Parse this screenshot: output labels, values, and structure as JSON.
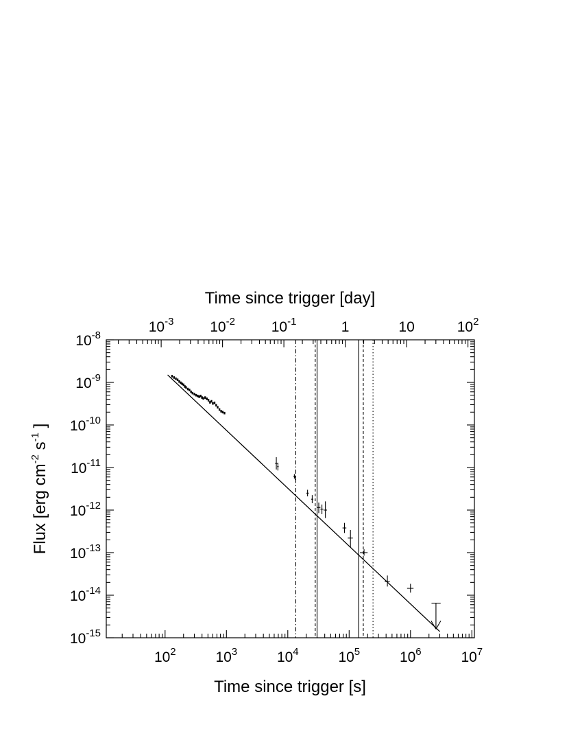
{
  "chart_data": {
    "type": "scatter",
    "title": "",
    "xlabel": "Time since trigger [s]",
    "xlabel_top": "Time since trigger [day]",
    "ylabel": "Flux [erg cm^-2 s^-1 ]",
    "ylabel_parts": {
      "base": "Flux [erg cm",
      "exp1": "-2",
      "mid": " s",
      "exp2": "-1",
      "end": " ]"
    },
    "x_scale": "log",
    "y_scale": "log",
    "xlim": [
      11,
      11000000
    ],
    "ylim": [
      1e-15,
      1e-08
    ],
    "grid": false,
    "legend": "none",
    "x_tick_labels": [
      {
        "value": 100,
        "base": "10",
        "exp": "2"
      },
      {
        "value": 1000,
        "base": "10",
        "exp": "3"
      },
      {
        "value": 10000,
        "base": "10",
        "exp": "4"
      },
      {
        "value": 100000,
        "base": "10",
        "exp": "5"
      },
      {
        "value": 1000000,
        "base": "10",
        "exp": "6"
      },
      {
        "value": 10000000,
        "base": "10",
        "exp": "7"
      }
    ],
    "x_top_tick_labels": [
      {
        "value": 0.001,
        "base": "10",
        "exp": "-3"
      },
      {
        "value": 0.01,
        "base": "10",
        "exp": "-2"
      },
      {
        "value": 0.1,
        "base": "10",
        "exp": "-1"
      },
      {
        "value": 1,
        "base": "1",
        "exp": ""
      },
      {
        "value": 10,
        "base": "10",
        "exp": ""
      },
      {
        "value": 100,
        "base": "10",
        "exp": "2"
      }
    ],
    "y_tick_labels": [
      {
        "value": 1e-08,
        "base": "10",
        "exp": "-8"
      },
      {
        "value": 1e-09,
        "base": "10",
        "exp": "-9"
      },
      {
        "value": 1e-10,
        "base": "10",
        "exp": "-10"
      },
      {
        "value": 1e-11,
        "base": "10",
        "exp": "-11"
      },
      {
        "value": 1e-12,
        "base": "10",
        "exp": "-12"
      },
      {
        "value": 1e-13,
        "base": "10",
        "exp": "-13"
      },
      {
        "value": 1e-14,
        "base": "10",
        "exp": "-14"
      },
      {
        "value": 1e-15,
        "base": "10",
        "exp": "-15"
      }
    ],
    "fit_line": {
      "x": [
        110,
        3000000
      ],
      "y": [
        1.5e-09,
        1.4e-15
      ]
    },
    "vertical_lines": [
      {
        "x": 13500,
        "style": "dashdot"
      },
      {
        "x": 28000,
        "style": "dashed"
      },
      {
        "x": 30000,
        "style": "solid"
      },
      {
        "x": 143000,
        "style": "solid"
      },
      {
        "x": 170000,
        "style": "dashed"
      },
      {
        "x": 245000,
        "style": "dotted"
      }
    ],
    "series": [
      {
        "values": [
          {
            "x": 130,
            "y": 1.4e-09
          },
          {
            "x": 140,
            "y": 1.3e-09
          },
          {
            "x": 150,
            "y": 1.22e-09
          },
          {
            "x": 160,
            "y": 1.15e-09
          },
          {
            "x": 170,
            "y": 1.05e-09
          },
          {
            "x": 180,
            "y": 9.8e-10
          },
          {
            "x": 190,
            "y": 9.2e-10
          },
          {
            "x": 200,
            "y": 8.8e-10
          },
          {
            "x": 210,
            "y": 8e-10
          },
          {
            "x": 220,
            "y": 7.6e-10
          },
          {
            "x": 235,
            "y": 7e-10
          },
          {
            "x": 250,
            "y": 6.6e-10
          },
          {
            "x": 265,
            "y": 6e-10
          },
          {
            "x": 280,
            "y": 5.6e-10
          },
          {
            "x": 300,
            "y": 5.3e-10
          },
          {
            "x": 320,
            "y": 5e-10
          },
          {
            "x": 340,
            "y": 4.8e-10
          },
          {
            "x": 360,
            "y": 4.6e-10
          },
          {
            "x": 380,
            "y": 4.8e-10
          },
          {
            "x": 400,
            "y": 4.4e-10
          },
          {
            "x": 420,
            "y": 4.2e-10
          },
          {
            "x": 450,
            "y": 4.4e-10
          },
          {
            "x": 480,
            "y": 4.1e-10
          },
          {
            "x": 510,
            "y": 3.8e-10
          },
          {
            "x": 540,
            "y": 3.4e-10
          },
          {
            "x": 570,
            "y": 3.6e-10
          },
          {
            "x": 600,
            "y": 3.2e-10
          },
          {
            "x": 640,
            "y": 3.3e-10
          },
          {
            "x": 680,
            "y": 2.9e-10
          },
          {
            "x": 720,
            "y": 2.6e-10
          },
          {
            "x": 770,
            "y": 2.3e-10
          },
          {
            "x": 820,
            "y": 2.1e-10
          },
          {
            "x": 870,
            "y": 2e-10
          },
          {
            "x": 930,
            "y": 1.9e-10
          }
        ]
      },
      {
        "values": [
          {
            "x": 6500,
            "y": 1.25e-11,
            "xerr": [
              6200,
              6800
            ],
            "yerr": [
              9e-12,
              1.75e-11
            ]
          },
          {
            "x": 6900,
            "y": 1.05e-11,
            "xerr": [
              6700,
              7100
            ],
            "yerr": [
              8.5e-12,
              1.3e-11
            ]
          },
          {
            "x": 12800,
            "y": 6.2e-12,
            "xerr": [
              12300,
              13300
            ],
            "yerr": [
              5.5e-12,
              7e-12
            ]
          },
          {
            "x": 13200,
            "y": 5.8e-12,
            "xerr": [
              12800,
              13600
            ],
            "yerr": [
              5.2e-12,
              6.5e-12
            ]
          },
          {
            "x": 21000,
            "y": 2.5e-12,
            "xerr": [
              20000,
              22000
            ],
            "yerr": [
              2.1e-12,
              3e-12
            ]
          },
          {
            "x": 25000,
            "y": 1.8e-12,
            "xerr": [
              24000,
              26000
            ],
            "yerr": [
              1.45e-12,
              2.25e-12
            ]
          },
          {
            "x": 32000,
            "y": 1.15e-12,
            "xerr": [
              30000,
              34000
            ],
            "yerr": [
              8.5e-13,
              1.5e-12
            ]
          },
          {
            "x": 36000,
            "y": 1.05e-12,
            "xerr": [
              34000,
              38000
            ],
            "yerr": [
              8e-13,
              1.35e-12
            ]
          },
          {
            "x": 41000,
            "y": 1e-12,
            "xerr": [
              38500,
              43500
            ],
            "yerr": [
              6.5e-13,
              1.6e-12
            ]
          },
          {
            "x": 84000,
            "y": 3.8e-13,
            "xerr": [
              78000,
              90000
            ],
            "yerr": [
              2.9e-13,
              5e-13
            ]
          },
          {
            "x": 105000,
            "y": 2.2e-13,
            "xerr": [
              95000,
              115000
            ],
            "yerr": [
              1.35e-13,
              3.4e-13
            ]
          },
          {
            "x": 175000,
            "y": 1e-13,
            "xerr": [
              150000,
              200000
            ],
            "yerr": [
              8.5e-14,
              1.2e-13
            ]
          },
          {
            "x": 420000,
            "y": 2.1e-14,
            "xerr": [
              380000,
              460000
            ],
            "yerr": [
              1.6e-14,
              2.9e-14
            ]
          },
          {
            "x": 1000000,
            "y": 1.45e-14,
            "xerr": [
              880000,
              1120000
            ],
            "yerr": [
              1.15e-14,
              1.85e-14
            ]
          }
        ]
      }
    ],
    "upper_limit": {
      "x": 2600000,
      "y": 6.5e-15,
      "xerr": [
        2200000,
        3100000
      ],
      "arrow_to": 1.6e-15
    }
  }
}
